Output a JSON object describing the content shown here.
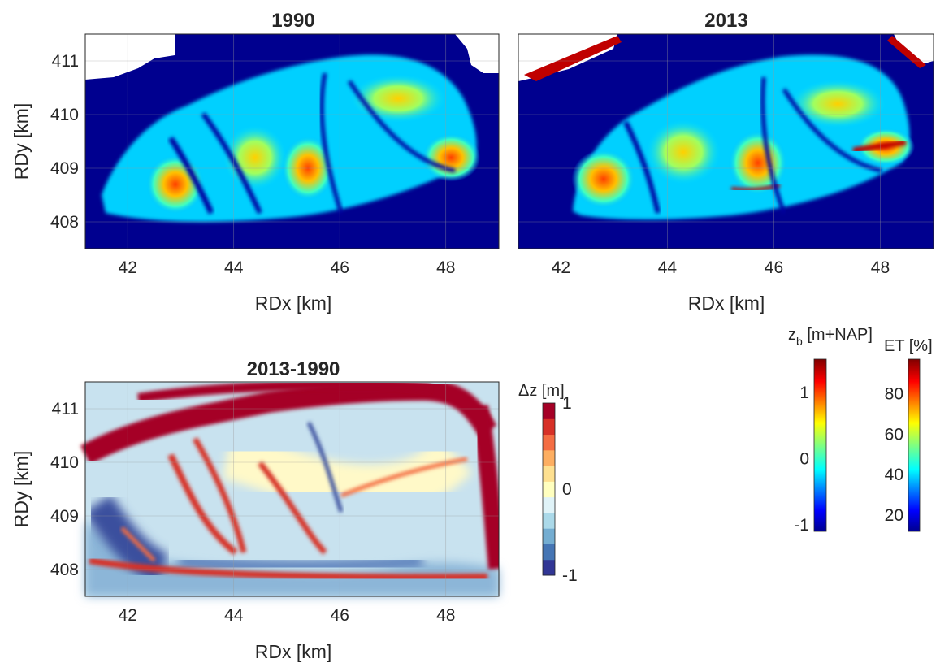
{
  "chart_data": [
    {
      "type": "heatmap",
      "title": "1990",
      "xlabel": "RDx [km]",
      "ylabel": "RDy [km]",
      "xlim": [
        41.2,
        49.0
      ],
      "ylim": [
        407.5,
        411.5
      ],
      "xticks": [
        42,
        44,
        46,
        48
      ],
      "yticks": [
        408,
        409,
        410,
        411
      ],
      "colormap": "jet",
      "grid": true,
      "background_color": "#00008f",
      "hotspots": [
        {
          "x": 42.9,
          "y": 408.7,
          "rx": 0.55,
          "ry": 0.55,
          "value": 0.96
        },
        {
          "x": 45.4,
          "y": 409.0,
          "rx": 0.5,
          "ry": 0.6,
          "value": 0.92
        },
        {
          "x": 48.1,
          "y": 409.2,
          "rx": 0.55,
          "ry": 0.45,
          "value": 0.9
        },
        {
          "x": 47.1,
          "y": 410.3,
          "rx": 0.9,
          "ry": 0.45,
          "value": 0.78
        },
        {
          "x": 44.4,
          "y": 409.2,
          "rx": 0.6,
          "ry": 0.6,
          "value": 0.62
        }
      ]
    },
    {
      "type": "heatmap",
      "title": "2013",
      "xlabel": "RDx [km]",
      "ylabel": "",
      "xlim": [
        41.2,
        49.0
      ],
      "ylim": [
        407.5,
        411.5
      ],
      "xticks": [
        42,
        44,
        46,
        48
      ],
      "yticks": [
        408,
        409,
        410,
        411
      ],
      "colormap": "jet",
      "grid": true,
      "background_color": "#00008f",
      "hotspots": [
        {
          "x": 42.8,
          "y": 408.8,
          "rx": 0.6,
          "ry": 0.55,
          "value": 0.94
        },
        {
          "x": 45.7,
          "y": 409.1,
          "rx": 0.55,
          "ry": 0.6,
          "value": 0.88
        },
        {
          "x": 48.1,
          "y": 409.4,
          "rx": 0.55,
          "ry": 0.35,
          "value": 0.92
        },
        {
          "x": 47.2,
          "y": 410.2,
          "rx": 0.9,
          "ry": 0.45,
          "value": 0.72
        },
        {
          "x": 44.3,
          "y": 409.3,
          "rx": 0.7,
          "ry": 0.6,
          "value": 0.6
        }
      ]
    },
    {
      "type": "heatmap",
      "title": "2013-1990",
      "xlabel": "RDx [km]",
      "ylabel": "RDy [km]",
      "xlim": [
        41.2,
        49.0
      ],
      "ylim": [
        407.5,
        411.5
      ],
      "xticks": [
        42,
        44,
        46,
        48
      ],
      "yticks": [
        408,
        409,
        410,
        411
      ],
      "colormap": "diverging red-yellow-blue",
      "grid": true,
      "colorbar": {
        "label": "Δz [m]",
        "range": [
          -1,
          1
        ],
        "ticks": [
          -1,
          0,
          1
        ],
        "levels": [
          "#313695",
          "#4575b4",
          "#74add1",
          "#abd9e9",
          "#e0f3f8",
          "#ffffbf",
          "#fee090",
          "#fdae61",
          "#f46d43",
          "#d73027",
          "#a50026"
        ]
      }
    }
  ],
  "colorbars": [
    {
      "label": "z",
      "label_sub": "b",
      "label_rest": " [m+NAP]",
      "range": [
        -1.1,
        1.5
      ],
      "ticks": [
        -1,
        0,
        1
      ],
      "colormap": "jet"
    },
    {
      "label": "ET [%]",
      "range": [
        12,
        97
      ],
      "ticks": [
        20,
        40,
        60,
        80
      ],
      "colormap": "jet"
    }
  ],
  "colors": {
    "jet": [
      "#00008f",
      "#0000ff",
      "#0080ff",
      "#00ffff",
      "#80ff80",
      "#ffff00",
      "#ff8000",
      "#ff0000",
      "#800000"
    ]
  }
}
